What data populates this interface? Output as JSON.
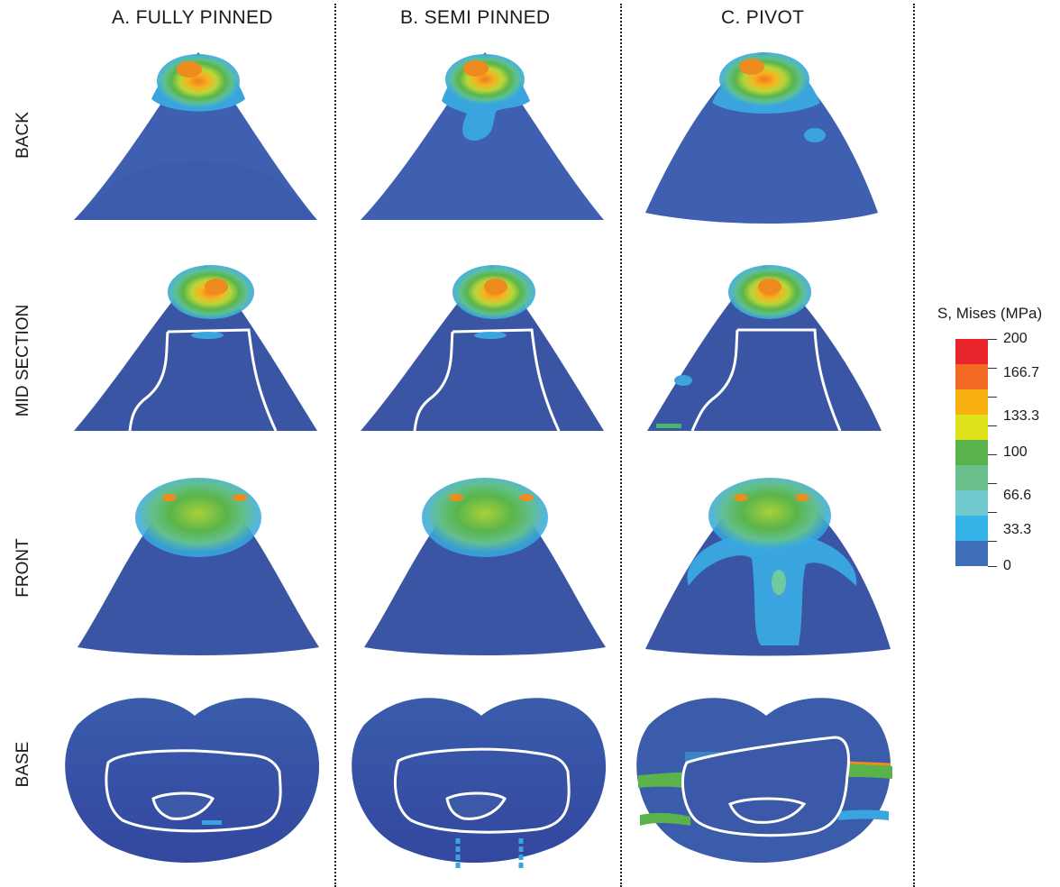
{
  "columns": [
    {
      "title": "A. FULLY PINNED"
    },
    {
      "title": "B. SEMI PINNED"
    },
    {
      "title": "C. PIVOT"
    }
  ],
  "rows": [
    {
      "label": "BACK"
    },
    {
      "label": "MID SECTION"
    },
    {
      "label": "FRONT"
    },
    {
      "label": "BASE"
    }
  ],
  "legend": {
    "title": "S, Mises  (MPa)",
    "tick_labels": [
      "200",
      "166.7",
      "133.3",
      "100",
      "66.6",
      "33.3",
      "0"
    ],
    "colors": [
      "#e8252a",
      "#f26a24",
      "#f9b111",
      "#dde21a",
      "#9bc93f",
      "#59b34a",
      "#69c08b",
      "#72c9cd",
      "#33b3e8",
      "#3f6fb9",
      "#33479f"
    ]
  }
}
